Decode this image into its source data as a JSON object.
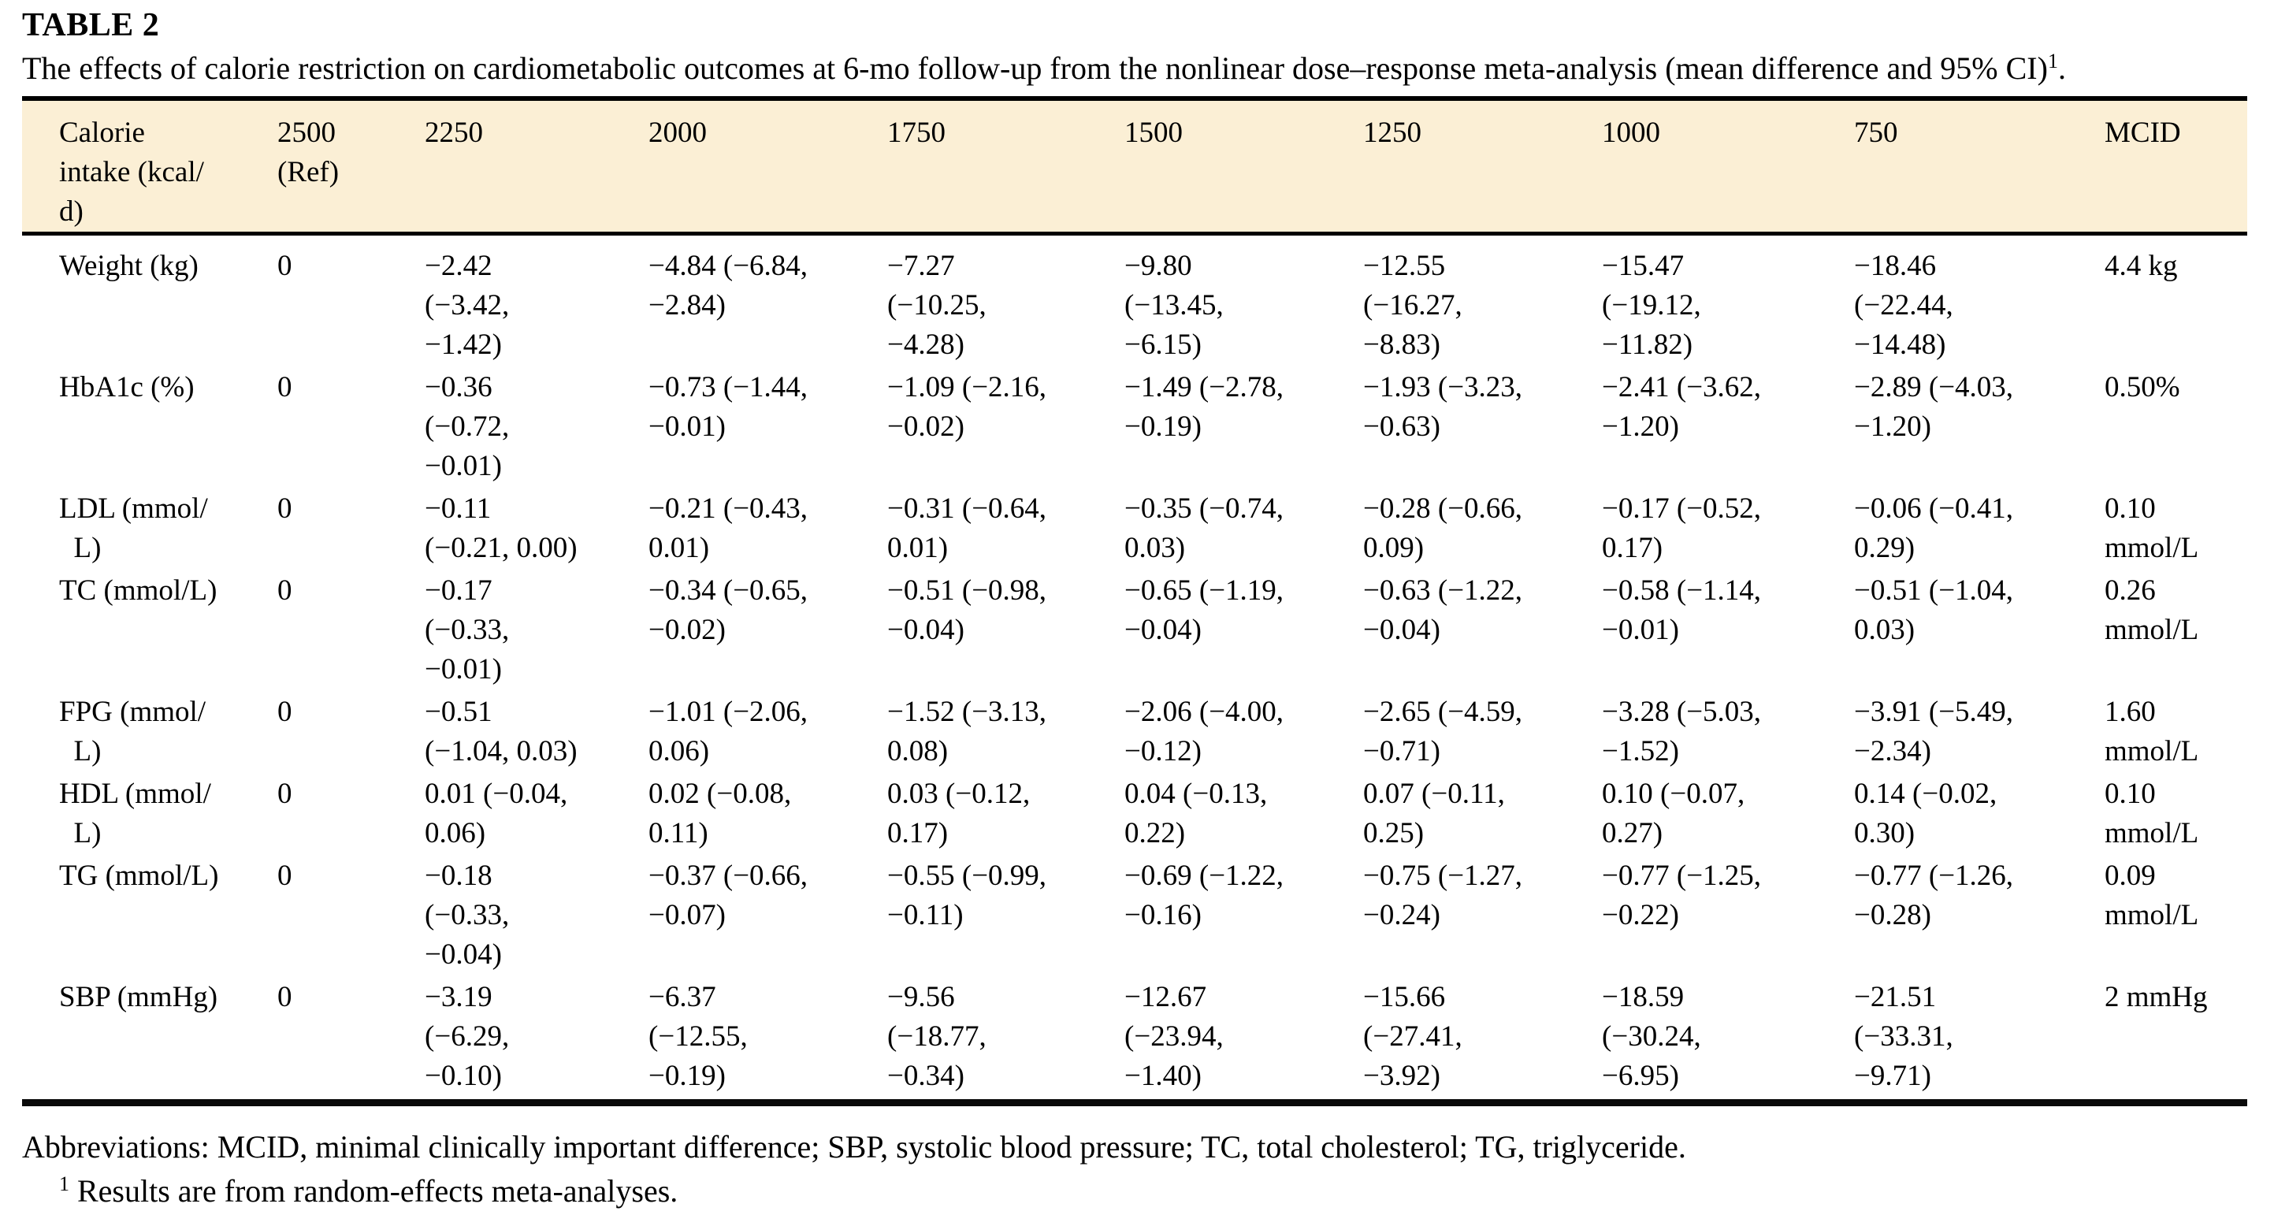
{
  "document": {
    "label": "TABLE 2",
    "caption": "The effects of calorie restriction on cardiometabolic outcomes at 6-mo follow-up from the nonlinear dose–response meta-analysis (mean difference and 95% CI)",
    "caption_footnote_marker": "1",
    "caption_suffix": ".",
    "colors": {
      "header_bg": "#FBEFD5",
      "rule": "#000000"
    },
    "table": {
      "header": [
        "Calorie\nintake (kcal/\nd)",
        "2500\n(Ref)",
        "2250",
        "2000",
        "1750",
        "1500",
        "1250",
        "1000",
        "750",
        "MCID"
      ],
      "rows": [
        {
          "label": "Weight (kg)",
          "cells": [
            "0",
            "−2.42\n(−3.42,\n−1.42)",
            "−4.84 (−6.84,\n−2.84)",
            "−7.27\n(−10.25,\n−4.28)",
            "−9.80\n(−13.45,\n−6.15)",
            "−12.55\n(−16.27,\n−8.83)",
            "−15.47\n(−19.12,\n−11.82)",
            "−18.46\n(−22.44,\n−14.48)",
            "4.4 kg"
          ]
        },
        {
          "label": "HbA1c (%)",
          "cells": [
            "0",
            "−0.36\n(−0.72,\n−0.01)",
            "−0.73 (−1.44,\n−0.01)",
            "−1.09 (−2.16,\n−0.02)",
            "−1.49 (−2.78,\n−0.19)",
            "−1.93 (−3.23,\n−0.63)",
            "−2.41 (−3.62,\n−1.20)",
            "−2.89 (−4.03,\n−1.20)",
            "0.50%"
          ]
        },
        {
          "label": "LDL (mmol/\n  L)",
          "cells": [
            "0",
            "−0.11\n(−0.21, 0.00)",
            "−0.21 (−0.43,\n0.01)",
            "−0.31 (−0.64,\n0.01)",
            "−0.35 (−0.74,\n0.03)",
            "−0.28 (−0.66,\n0.09)",
            "−0.17 (−0.52,\n0.17)",
            "−0.06 (−0.41,\n0.29)",
            "0.10\nmmol/L"
          ]
        },
        {
          "label": "TC (mmol/L)",
          "cells": [
            "0",
            "−0.17\n(−0.33,\n−0.01)",
            "−0.34 (−0.65,\n−0.02)",
            "−0.51 (−0.98,\n−0.04)",
            "−0.65 (−1.19,\n−0.04)",
            "−0.63 (−1.22,\n−0.04)",
            "−0.58 (−1.14,\n−0.01)",
            "−0.51 (−1.04,\n0.03)",
            "0.26\nmmol/L"
          ]
        },
        {
          "label": "FPG (mmol/\n  L)",
          "cells": [
            "0",
            "−0.51\n(−1.04, 0.03)",
            "−1.01 (−2.06,\n0.06)",
            "−1.52 (−3.13,\n0.08)",
            "−2.06 (−4.00,\n−0.12)",
            "−2.65 (−4.59,\n−0.71)",
            "−3.28 (−5.03,\n−1.52)",
            "−3.91 (−5.49,\n−2.34)",
            "1.60\nmmol/L"
          ]
        },
        {
          "label": "HDL (mmol/\n  L)",
          "cells": [
            "0",
            "0.01 (−0.04,\n0.06)",
            "0.02 (−0.08,\n0.11)",
            "0.03 (−0.12,\n0.17)",
            "0.04 (−0.13,\n0.22)",
            "0.07 (−0.11,\n0.25)",
            "0.10 (−0.07,\n0.27)",
            "0.14 (−0.02,\n0.30)",
            "0.10\nmmol/L"
          ]
        },
        {
          "label": "TG (mmol/L)",
          "cells": [
            "0",
            "−0.18\n(−0.33,\n−0.04)",
            "−0.37 (−0.66,\n−0.07)",
            "−0.55 (−0.99,\n−0.11)",
            "−0.69 (−1.22,\n−0.16)",
            "−0.75 (−1.27,\n−0.24)",
            "−0.77 (−1.25,\n−0.22)",
            "−0.77 (−1.26,\n−0.28)",
            "0.09\nmmol/L"
          ]
        },
        {
          "label": "SBP (mmHg)",
          "cells": [
            "0",
            "−3.19\n(−6.29,\n−0.10)",
            "−6.37\n(−12.55,\n−0.19)",
            "−9.56\n(−18.77,\n−0.34)",
            "−12.67\n(−23.94,\n−1.40)",
            "−15.66\n(−27.41,\n−3.92)",
            "−18.59\n(−30.24,\n−6.95)",
            "−21.51\n(−33.31,\n−9.71)",
            "2 mmHg"
          ]
        }
      ]
    },
    "abbreviations": "Abbreviations: MCID, minimal clinically important difference; SBP, systolic blood pressure; TC, total cholesterol; TG, triglyceride.",
    "footnote": {
      "marker": "1",
      "text": "Results are from random-effects meta-analyses."
    }
  }
}
